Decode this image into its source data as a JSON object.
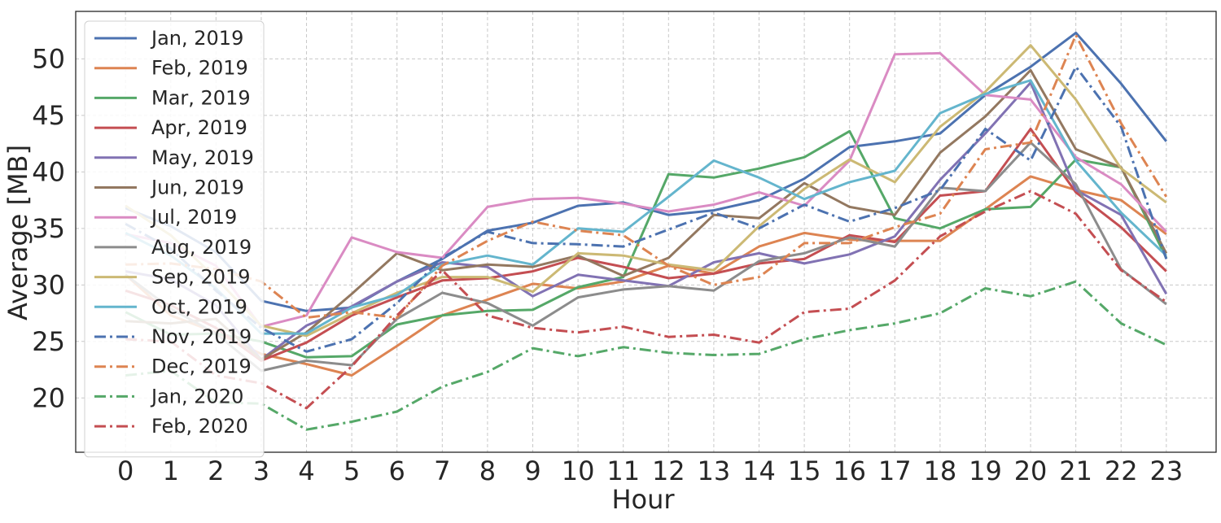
{
  "chart_data": {
    "type": "line",
    "title": "",
    "xlabel": "Hour",
    "ylabel": "Average [MB]",
    "x": [
      0,
      1,
      2,
      3,
      4,
      5,
      6,
      7,
      8,
      9,
      10,
      11,
      12,
      13,
      14,
      15,
      16,
      17,
      18,
      19,
      20,
      21,
      22,
      23
    ],
    "xlim": [
      -1.1,
      24.1
    ],
    "ylim": [
      15.2,
      54.2
    ],
    "yticks": [
      20,
      25,
      30,
      35,
      40,
      45,
      50
    ],
    "grid": true,
    "legend_position": "upper-left",
    "series": [
      {
        "name": "Jan, 2019",
        "color": "#4c72b0",
        "dash": "solid",
        "values": [
          36.8,
          35.2,
          32.9,
          28.6,
          27.7,
          28.0,
          30.3,
          32.3,
          34.8,
          35.5,
          37.0,
          37.3,
          36.2,
          36.6,
          37.5,
          39.4,
          42.2,
          42.7,
          43.4,
          46.8,
          49.3,
          52.3,
          47.8,
          42.7
        ]
      },
      {
        "name": "Feb, 2019",
        "color": "#dd8452",
        "dash": "solid",
        "values": [
          30.9,
          27.3,
          25.8,
          23.9,
          23.0,
          22.0,
          24.6,
          27.3,
          28.7,
          30.1,
          29.7,
          30.3,
          31.7,
          31.0,
          33.4,
          34.6,
          34.0,
          33.9,
          33.9,
          36.7,
          39.6,
          38.4,
          37.5,
          34.5
        ]
      },
      {
        "name": "Mar, 2019",
        "color": "#55a868",
        "dash": "solid",
        "values": [
          27.6,
          25.6,
          25.7,
          25.0,
          23.6,
          23.7,
          26.5,
          27.3,
          27.7,
          27.8,
          29.8,
          30.7,
          39.8,
          39.5,
          40.3,
          41.3,
          43.6,
          35.9,
          35.0,
          36.7,
          36.9,
          41.1,
          40.4,
          32.4
        ]
      },
      {
        "name": "Apr, 2019",
        "color": "#c44e52",
        "dash": "solid",
        "values": [
          29.5,
          28.2,
          26.2,
          23.3,
          24.9,
          27.3,
          28.9,
          30.4,
          30.6,
          31.2,
          32.4,
          31.6,
          30.6,
          31.0,
          31.9,
          32.3,
          34.4,
          33.8,
          37.9,
          38.3,
          43.8,
          38.2,
          35.1,
          31.2
        ]
      },
      {
        "name": "May, 2019",
        "color": "#8172b3",
        "dash": "solid",
        "values": [
          31.2,
          30.5,
          28.2,
          23.4,
          26.4,
          28.1,
          30.3,
          32.0,
          31.6,
          29.0,
          30.9,
          30.4,
          29.9,
          32.0,
          32.8,
          31.9,
          32.7,
          34.3,
          39.3,
          43.4,
          47.9,
          38.4,
          36.2,
          29.2
        ]
      },
      {
        "name": "Jun, 2019",
        "color": "#937860",
        "dash": "solid",
        "values": [
          26.8,
          26.6,
          27.0,
          23.4,
          25.8,
          29.2,
          32.8,
          31.3,
          31.8,
          31.6,
          32.6,
          30.8,
          32.4,
          36.2,
          35.9,
          39.0,
          36.9,
          36.2,
          41.7,
          44.9,
          49.0,
          42.0,
          40.4,
          32.8
        ]
      },
      {
        "name": "Jul, 2019",
        "color": "#da8bc3",
        "dash": "solid",
        "values": [
          34.5,
          33.7,
          31.7,
          26.3,
          27.3,
          34.2,
          32.9,
          32.4,
          36.9,
          37.6,
          37.7,
          37.2,
          36.5,
          37.1,
          38.2,
          37.0,
          41.0,
          50.4,
          50.5,
          46.8,
          46.4,
          41.3,
          38.9,
          34.7
        ]
      },
      {
        "name": "Aug, 2019",
        "color": "#8c8c8c",
        "dash": "solid",
        "values": [
          30.9,
          27.9,
          25.7,
          22.4,
          23.3,
          22.9,
          27.0,
          29.3,
          28.4,
          26.4,
          28.9,
          29.6,
          29.9,
          29.5,
          32.1,
          32.8,
          34.2,
          33.4,
          38.6,
          38.3,
          42.6,
          38.9,
          31.4,
          28.3
        ]
      },
      {
        "name": "Sep, 2019",
        "color": "#ccb974",
        "dash": "solid",
        "values": [
          37.0,
          34.4,
          30.6,
          26.4,
          25.5,
          27.5,
          29.3,
          30.7,
          30.7,
          29.4,
          32.8,
          32.6,
          31.8,
          31.3,
          35.2,
          38.5,
          41.1,
          39.1,
          44.0,
          47.1,
          51.2,
          46.4,
          40.3,
          37.3
        ]
      },
      {
        "name": "Oct, 2019",
        "color": "#64b5cd",
        "dash": "solid",
        "values": [
          34.6,
          32.6,
          29.7,
          25.7,
          25.7,
          28.0,
          29.1,
          31.8,
          32.6,
          31.8,
          35.0,
          34.7,
          37.8,
          41.0,
          39.5,
          37.6,
          39.1,
          40.1,
          45.2,
          46.9,
          48.1,
          41.0,
          36.4,
          32.6
        ]
      },
      {
        "name": "Nov, 2019",
        "color": "#4c72b0",
        "dash": "dashdot",
        "values": [
          35.4,
          33.2,
          29.5,
          26.2,
          24.1,
          25.2,
          28.4,
          32.4,
          34.7,
          33.7,
          33.6,
          33.4,
          34.9,
          36.4,
          35.0,
          37.1,
          35.6,
          36.8,
          38.4,
          43.8,
          41.0,
          49.3,
          44.0,
          32.3
        ]
      },
      {
        "name": "Dec, 2019",
        "color": "#dd8452",
        "dash": "dashdot",
        "values": [
          31.8,
          31.9,
          31.4,
          30.3,
          27.1,
          27.6,
          27.1,
          31.7,
          33.9,
          35.6,
          34.8,
          34.4,
          31.7,
          30.0,
          30.7,
          33.7,
          33.7,
          35.1,
          36.3,
          42.0,
          42.6,
          52.1,
          44.3,
          37.8
        ]
      },
      {
        "name": "Jan, 2020",
        "color": "#55a868",
        "dash": "dashdot",
        "values": [
          22.0,
          22.4,
          19.6,
          19.5,
          17.2,
          17.9,
          18.8,
          21.0,
          22.3,
          24.4,
          23.7,
          24.5,
          24.0,
          23.8,
          23.9,
          25.2,
          26.0,
          26.6,
          27.5,
          29.7,
          29.0,
          30.3,
          26.6,
          24.7
        ]
      },
      {
        "name": "Feb, 2020",
        "color": "#c44e52",
        "dash": "dashdot",
        "values": [
          25.2,
          25.0,
          22.0,
          21.3,
          19.1,
          22.8,
          27.3,
          31.3,
          27.3,
          26.2,
          25.8,
          26.3,
          25.4,
          25.6,
          24.9,
          27.6,
          27.9,
          30.4,
          34.3,
          36.5,
          38.3,
          36.3,
          31.3,
          28.5
        ]
      }
    ]
  }
}
